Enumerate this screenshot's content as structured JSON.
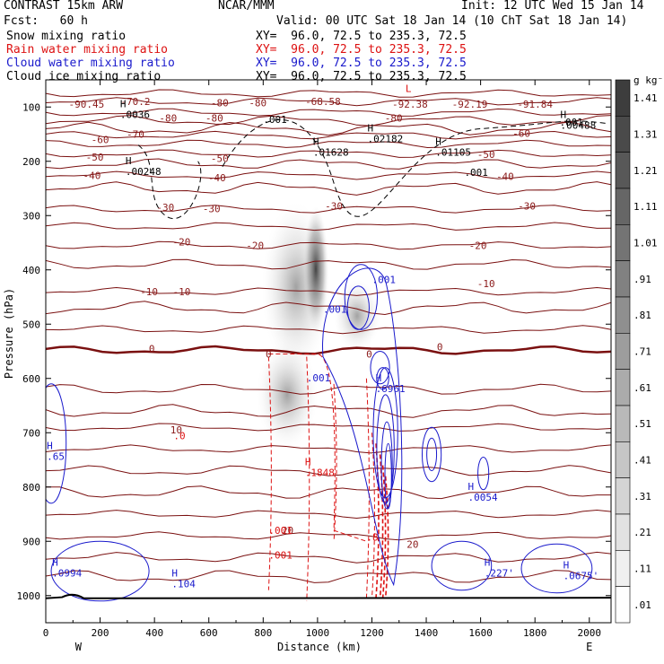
{
  "header": {
    "model": "CONTRAST 15km ARW",
    "forecast": "Fcst:   60 h",
    "org": "NCAR/MMM",
    "init": "Init: 12 UTC Wed 15 Jan 14",
    "valid": "Valid: 00 UTC Sat 18 Jan 14 (10 ChT Sat 18 Jan 14)",
    "fields": [
      {
        "name": "Snow mixing ratio",
        "xy": "XY=  96.0, 72.5 to 235.3, 72.5",
        "color": "#000000"
      },
      {
        "name": "Rain water mixing ratio",
        "xy": "XY=  96.0, 72.5 to 235.3, 72.5",
        "color": "#dd1111"
      },
      {
        "name": "Cloud water mixing ratio",
        "xy": "XY=  96.0, 72.5 to 235.3, 72.5",
        "color": "#1a1acc"
      },
      {
        "name": "Cloud ice mixing ratio",
        "xy": "XY=  96.0, 72.5 to 235.3, 72.5",
        "color": "#000000"
      }
    ]
  },
  "chart_data": {
    "type": "contour",
    "xlabel": "Distance (km)",
    "ylabel": "Pressure (hPa)",
    "xlim": [
      0,
      2080
    ],
    "ylim": [
      1050,
      50
    ],
    "xticks": [
      0,
      200,
      400,
      600,
      800,
      1000,
      1200,
      1400,
      1600,
      1800,
      2000
    ],
    "yticks": [
      100,
      200,
      300,
      400,
      500,
      600,
      700,
      800,
      900,
      1000
    ],
    "left_end_label": "W",
    "right_end_label": "E",
    "colorbar": {
      "unit": "g kg⁻¹",
      "labels": [
        "1.41",
        "1.31",
        "1.21",
        "1.11",
        "1.01",
        ".91",
        ".81",
        ".71",
        ".61",
        ".51",
        ".41",
        ".31",
        ".21",
        ".11",
        ".01"
      ],
      "values": [
        1.41,
        1.31,
        1.21,
        1.11,
        1.01,
        0.91,
        0.81,
        0.71,
        0.61,
        0.51,
        0.41,
        0.31,
        0.21,
        0.11,
        0.01
      ]
    },
    "temperature_isotherms": [
      {
        "value": -80,
        "p": 75
      },
      {
        "value": -70,
        "p": 90
      },
      {
        "value": -60,
        "p": 152
      },
      {
        "value": -50,
        "p": 186
      },
      {
        "value": -40,
        "p": 226
      },
      {
        "value": -30,
        "p": 288
      },
      {
        "value": -20,
        "p": 355
      },
      {
        "value": -10,
        "p": 440
      },
      {
        "value": 0,
        "p": 548
      },
      {
        "value": 10,
        "p": 690
      },
      {
        "value": 20,
        "p": 850
      }
    ],
    "temperature_labels": [
      "-70.2",
      "-80",
      "-80",
      "-68.58",
      "-80",
      "-80",
      "-80",
      "-70",
      "-60",
      "-50",
      "-40",
      "-50",
      "-40",
      "-30",
      "-30",
      "-20",
      "-20",
      "-30",
      "-10",
      "-10",
      "0",
      "0",
      "0",
      "0",
      "10",
      "20",
      "20",
      "-60",
      "-50",
      "-40",
      "-30",
      "-20",
      "-10",
      "-90.45",
      "-92.38",
      "-92.19",
      "-91.84"
    ],
    "extrema": [
      {
        "kind": "H",
        "value": ".0036"
      },
      {
        "kind": "H",
        "value": ".01628"
      },
      {
        "kind": "H",
        "value": ".02182"
      },
      {
        "kind": "H",
        "value": ".01105"
      },
      {
        "kind": "H",
        "value": ".00488"
      },
      {
        "kind": "H",
        "value": ".00248"
      },
      {
        "kind": "H",
        "value": ".6961"
      },
      {
        "kind": "H",
        "value": ".1848"
      },
      {
        "kind": "H",
        "value": ".0054"
      },
      {
        "kind": "H",
        "value": ".0994"
      },
      {
        "kind": "H",
        "value": ".104"
      },
      {
        "kind": "H",
        "value": ".227'"
      },
      {
        "kind": "H",
        "value": ".0675'"
      },
      {
        "kind": "H",
        "value": ".65"
      },
      {
        "kind": "L",
        "value": ""
      }
    ],
    "contour_labels": [
      ".001",
      ".001",
      ".001",
      ".001",
      ".001",
      ".001",
      ".001",
      ".001",
      ".8",
      ".0"
    ]
  }
}
